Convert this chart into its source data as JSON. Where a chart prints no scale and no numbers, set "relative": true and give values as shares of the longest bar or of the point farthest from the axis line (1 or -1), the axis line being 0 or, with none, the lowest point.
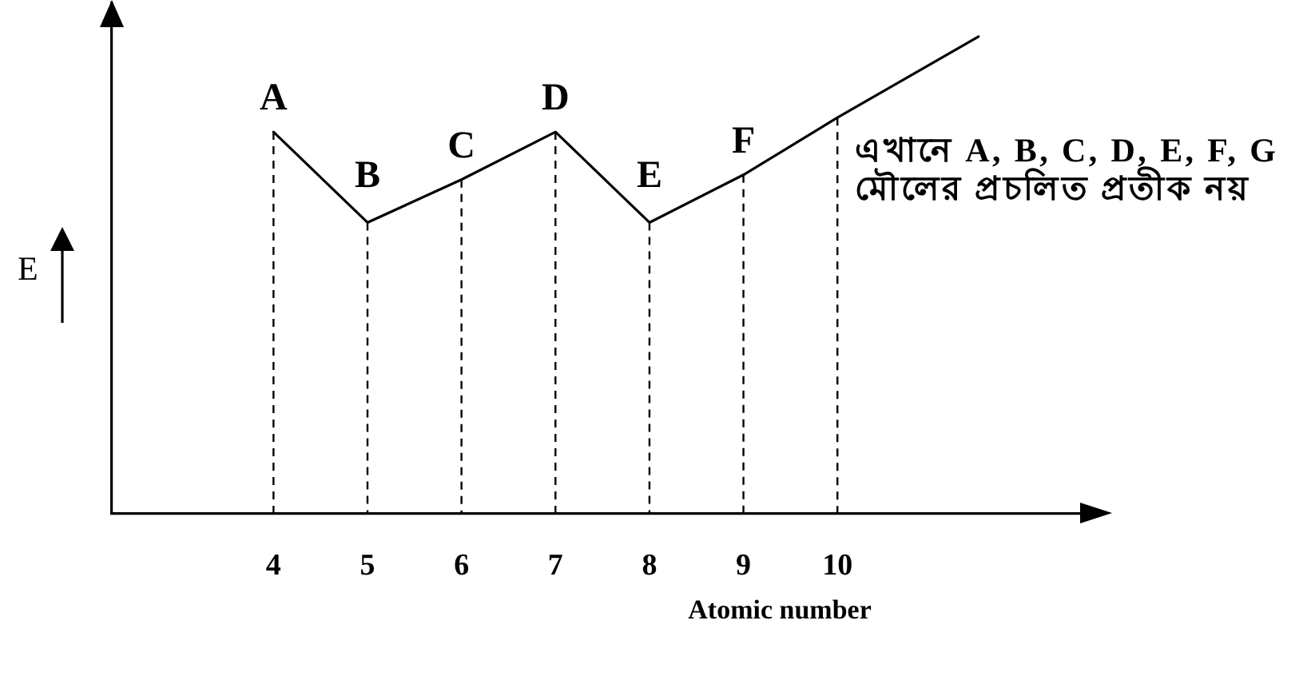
{
  "chart_data": {
    "type": "line",
    "relative": true,
    "xlabel": "Atomic number",
    "ylabel": "E",
    "x": [
      4,
      5,
      6,
      7,
      8,
      9,
      10,
      11.5
    ],
    "values": [
      0.8,
      0.61,
      0.7,
      0.8,
      0.61,
      0.71,
      0.83,
      1
    ],
    "color": "#000000",
    "xlim": [
      2.28,
      12.65
    ],
    "xticks": [
      4,
      5,
      6,
      7,
      8,
      9,
      10
    ],
    "grid": "x",
    "marker": "none",
    "line_style": "solid",
    "annotations": [
      {
        "text": "A",
        "x": 4,
        "y": 0.8
      },
      {
        "text": "B",
        "x": 5,
        "y": 0.61
      },
      {
        "text": "C",
        "x": 6,
        "y": 0.7
      },
      {
        "text": "D",
        "x": 7,
        "y": 0.8
      },
      {
        "text": "E",
        "x": 8,
        "y": 0.61
      },
      {
        "text": "F",
        "x": 9,
        "y": 0.71
      },
      "এখানে A, B, C, D, E, F, G\nমৌলের প্রচলিত প্রতীক নয়"
    ]
  }
}
